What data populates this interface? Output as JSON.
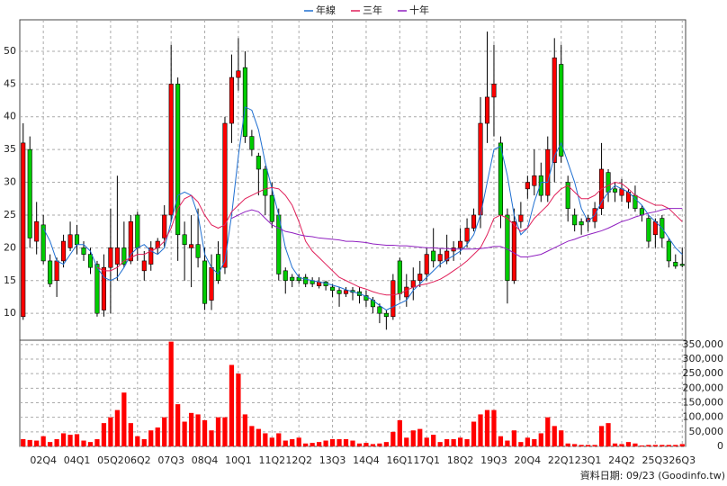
{
  "chart_data": [
    {
      "type": "candlestick",
      "categories": [
        null,
        null,
        null,
        "02Q4",
        null,
        null,
        null,
        null,
        "04Q1",
        null,
        null,
        null,
        null,
        "05Q2",
        null,
        null,
        null,
        "06Q2",
        null,
        null,
        null,
        null,
        "07Q3",
        null,
        null,
        null,
        null,
        "08Q4",
        null,
        null,
        null,
        null,
        "10Q1",
        null,
        null,
        null,
        null,
        "11Q2",
        null,
        null,
        null,
        "12Q2",
        null,
        null,
        null,
        null,
        "13Q3",
        null,
        null,
        null,
        null,
        "14Q4",
        null,
        null,
        null,
        null,
        "16Q1",
        null,
        null,
        null,
        "17Q1",
        null,
        null,
        null,
        null,
        "18Q2",
        null,
        null,
        null,
        null,
        "19Q3",
        null,
        null,
        null,
        null,
        "20Q4",
        null,
        null,
        null,
        null,
        "22Q1",
        null,
        null,
        null,
        "23Q1",
        null,
        null,
        null,
        null,
        "24Q2",
        null,
        null,
        null,
        null,
        "25Q3",
        null,
        null,
        null,
        "26Q3"
      ],
      "open": [
        9.5,
        35,
        21,
        23.5,
        18,
        15,
        18,
        20,
        22,
        20,
        19,
        17.5,
        10.5,
        17,
        17.5,
        20,
        18,
        25,
        16.5,
        17.5,
        20,
        21.5,
        25,
        45,
        22,
        20,
        20.5,
        18,
        12,
        19,
        17,
        39,
        46,
        47.5,
        37,
        34,
        32,
        28,
        25,
        16.5,
        15.5,
        15.5,
        15.5,
        15,
        14.2,
        14.8,
        14,
        13.5,
        13,
        13.5,
        13.3,
        12.7,
        12,
        11,
        10,
        9.5,
        18,
        12.5,
        14,
        15,
        16,
        19.5,
        18,
        18,
        19.5,
        20,
        21,
        23,
        25,
        39,
        43,
        36,
        25,
        15,
        24,
        29,
        29.5,
        31,
        28,
        33,
        48,
        30,
        25,
        24,
        24,
        24,
        26,
        31.5,
        29,
        28,
        27,
        28,
        26,
        24.5,
        22,
        24.5,
        21,
        17.8,
        17.5
      ],
      "high": [
        39,
        37,
        27,
        25,
        19,
        18.5,
        22,
        24,
        23.5,
        21,
        20,
        18,
        19,
        26,
        31,
        24,
        25,
        25.5,
        19.5,
        21,
        21.5,
        26.5,
        51,
        46,
        24,
        25,
        26,
        20,
        19,
        21,
        40,
        49.5,
        52,
        50,
        38,
        34.5,
        32.5,
        30,
        26,
        17,
        16,
        16,
        16,
        15.5,
        15.5,
        15,
        14.5,
        14,
        14,
        14,
        14,
        13.5,
        12.5,
        11.5,
        10.5,
        16,
        18.5,
        16,
        17,
        18,
        20,
        23,
        20,
        22,
        21,
        23,
        24.5,
        26,
        43,
        53,
        51,
        37,
        26,
        26,
        27,
        31,
        35,
        33,
        37,
        52,
        51,
        31,
        26,
        24.5,
        25,
        27,
        36,
        32,
        30,
        30.5,
        29,
        29.5,
        26.5,
        25,
        24.5,
        25,
        21.5,
        19,
        20
      ],
      "low": [
        9,
        20,
        19,
        17.5,
        14,
        12.5,
        17,
        19.5,
        19,
        18,
        16,
        9.5,
        9.5,
        10,
        15,
        17,
        17.5,
        18,
        15,
        16.5,
        19,
        20,
        24,
        18,
        15,
        14,
        17,
        10.5,
        10.5,
        14.5,
        16,
        36,
        44,
        36,
        34,
        28,
        25,
        23,
        15,
        13,
        14,
        14.5,
        14,
        14,
        13.8,
        13.5,
        12.5,
        11,
        12.5,
        12,
        11.5,
        11,
        10,
        8.5,
        7.5,
        9,
        12,
        11,
        12,
        14,
        15,
        17,
        17,
        17.5,
        18,
        19,
        20,
        22.5,
        23,
        36,
        37,
        23,
        11.5,
        14.5,
        23,
        27.5,
        28,
        27,
        27,
        30,
        33,
        24,
        22.5,
        22,
        22.5,
        23,
        25,
        27,
        27,
        27,
        26,
        25.5,
        24,
        20,
        20,
        20,
        17,
        16.8,
        17
      ],
      "close": [
        36,
        21.5,
        24,
        18,
        14.5,
        18,
        21,
        22,
        20.5,
        19,
        17,
        10,
        17,
        20,
        20,
        17.5,
        24,
        20,
        18,
        20,
        21,
        25,
        45,
        22,
        20.5,
        20.5,
        18.5,
        11.5,
        17,
        15,
        39,
        46,
        47,
        37,
        35,
        32,
        28,
        24,
        16,
        15,
        15,
        15,
        14.5,
        14.5,
        14.8,
        14.2,
        13.5,
        13,
        13.5,
        13.2,
        12.7,
        12,
        11,
        10,
        9.5,
        15,
        13,
        14,
        15,
        16,
        19,
        18,
        19,
        19.5,
        20,
        21,
        23,
        25,
        39,
        43,
        45,
        25,
        15,
        24,
        25,
        30,
        31,
        28,
        35,
        49,
        34,
        26,
        23.5,
        23.5,
        24.5,
        26,
        32,
        28.5,
        28.5,
        29,
        28.5,
        26,
        25,
        21,
        24,
        21.5,
        18,
        17.2,
        17.3
      ],
      "up_color": "#ff0000",
      "down_color": "#00cc00",
      "series": [
        {
          "name": "年線",
          "color": "#1f6fd1",
          "values": [
            null,
            null,
            null,
            23,
            21,
            18,
            17.5,
            19,
            20.5,
            20.5,
            19.5,
            17,
            15.5,
            15,
            15.5,
            17,
            19,
            20,
            20.5,
            19.5,
            19,
            20,
            24,
            28,
            28.5,
            28,
            25,
            19,
            17,
            16,
            18,
            25,
            34,
            41.5,
            41,
            38,
            33,
            29,
            25,
            20,
            17,
            15.5,
            15.2,
            15,
            14.8,
            14.6,
            14.3,
            14,
            13.6,
            13.3,
            13,
            12.6,
            12,
            11.2,
            10.5,
            11,
            11.5,
            12,
            13.5,
            14.5,
            15.5,
            16.5,
            17.5,
            18.2,
            18.8,
            19.5,
            20.5,
            22,
            25,
            30,
            35,
            35.5,
            31,
            25,
            22,
            23,
            27,
            30,
            30,
            34,
            36,
            33,
            30,
            26,
            24,
            25,
            27,
            28.5,
            29.5,
            29,
            28.5,
            27.5,
            26.5,
            25,
            24,
            23,
            21.5,
            20,
            19
          ]
        },
        {
          "name": "三年",
          "color": "#e0205a",
          "values": [
            null,
            null,
            null,
            null,
            null,
            null,
            null,
            null,
            null,
            null,
            null,
            17,
            16.5,
            16.5,
            17,
            18,
            18.5,
            19,
            19,
            19.5,
            20,
            21,
            23,
            26,
            27.5,
            28,
            27,
            25,
            23.5,
            23,
            23.5,
            25.5,
            26.5,
            27.5,
            28,
            28.5,
            29,
            29.2,
            29,
            28,
            26.5,
            24,
            21,
            19.5,
            18.5,
            17.5,
            16.5,
            15.5,
            15,
            14.5,
            14,
            13.7,
            13.3,
            13,
            12.8,
            12.8,
            13,
            13.5,
            14,
            14.3,
            14.5,
            14.8,
            15.2,
            15.8,
            16.5,
            17.2,
            18,
            19,
            20,
            22,
            24.5,
            25,
            24.5,
            23.5,
            22.5,
            23,
            24.5,
            25.5,
            26.5,
            28,
            29,
            29.5,
            28.5,
            27.5,
            27.5,
            28,
            29,
            29.5,
            30,
            29.8,
            29,
            28,
            27.5,
            27,
            26.5,
            26.5,
            26,
            25,
            24
          ]
        },
        {
          "name": "十年",
          "color": "#9020c0",
          "values": [
            null,
            null,
            null,
            null,
            null,
            null,
            null,
            null,
            null,
            null,
            null,
            null,
            null,
            null,
            null,
            null,
            null,
            null,
            null,
            null,
            null,
            null,
            null,
            null,
            null,
            null,
            null,
            null,
            null,
            null,
            null,
            24.5,
            25,
            25.5,
            25.8,
            25.5,
            24.5,
            23.5,
            23,
            22.5,
            22.3,
            22,
            21.8,
            21.7,
            21.5,
            21.4,
            21.3,
            21.2,
            21,
            21,
            20.9,
            20.8,
            20.6,
            20.5,
            20.4,
            20.4,
            20.3,
            20.3,
            20.2,
            20.1,
            20,
            20,
            19.9,
            19.9,
            19.8,
            19.8,
            19.8,
            19.8,
            19.9,
            20,
            20.2,
            20.2,
            19.8,
            19.2,
            18.6,
            18.6,
            18.8,
            19,
            19.5,
            20,
            20.5,
            21,
            21.3,
            21.7,
            22,
            22.3,
            22.6,
            23,
            23.5,
            24,
            24.3,
            24.7,
            25,
            25.3,
            25.5,
            25.8,
            26,
            26,
            26
          ]
        }
      ],
      "ylim": [
        5.9,
        54.8
      ],
      "yticks": [
        10,
        15,
        20,
        25,
        30,
        35,
        40,
        45,
        50
      ],
      "grid": true,
      "legend": "top"
    },
    {
      "type": "bar",
      "color": "#ff0000",
      "values": [
        25000,
        22000,
        20000,
        35000,
        15000,
        25000,
        45000,
        40000,
        42000,
        20000,
        15000,
        25000,
        80000,
        100000,
        125000,
        185000,
        80000,
        35000,
        25000,
        55000,
        65000,
        100000,
        360000,
        145000,
        85000,
        115000,
        110000,
        90000,
        55000,
        100000,
        100000,
        280000,
        250000,
        110000,
        70000,
        60000,
        45000,
        30000,
        45000,
        20000,
        25000,
        30000,
        10000,
        12000,
        15000,
        20000,
        25000,
        25000,
        25000,
        20000,
        10000,
        12000,
        8000,
        10000,
        15000,
        50000,
        90000,
        30000,
        55000,
        60000,
        30000,
        40000,
        15000,
        25000,
        25000,
        30000,
        25000,
        85000,
        110000,
        125000,
        125000,
        35000,
        20000,
        55000,
        15000,
        30000,
        25000,
        45000,
        100000,
        70000,
        55000,
        10000,
        8000,
        5000,
        5000,
        5000,
        70000,
        80000,
        10000,
        8000,
        15000,
        10000,
        3000,
        5000,
        5000,
        5000,
        5000,
        5000,
        8000
      ],
      "ylim": [
        0,
        365000
      ],
      "yticks": [
        0,
        {
          "value": 50000,
          "label": "50,000"
        },
        {
          "value": 100000,
          "label": "100,000"
        },
        {
          "value": 150000,
          "label": "150,000"
        },
        {
          "value": 200000,
          "label": "200,000"
        },
        {
          "value": 250000,
          "label": "250,000"
        },
        {
          "value": 300000,
          "label": "300,000"
        },
        {
          "value": 350000,
          "label": "350,000"
        }
      ],
      "grid": true
    }
  ],
  "footer": "資料日期: 09/23 (Goodinfo.tw)"
}
